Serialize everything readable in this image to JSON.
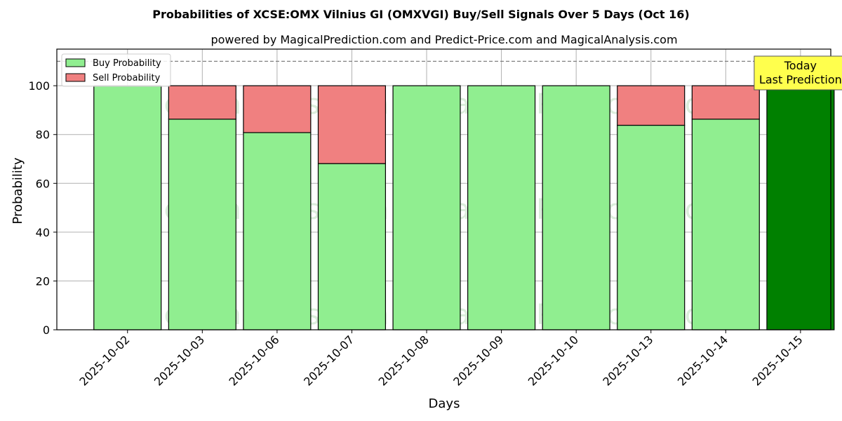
{
  "chart_data": {
    "type": "bar",
    "stacked": true,
    "title": "Probabilities of XCSE:OMX Vilnius GI (OMXVGI) Buy/Sell Signals Over 5 Days (Oct 16)",
    "subtitle": "powered by MagicalPrediction.com and Predict-Price.com and MagicalAnalysis.com",
    "xlabel": "Days",
    "ylabel": "Probability",
    "ylim": [
      0,
      115
    ],
    "yticks": [
      0,
      20,
      40,
      60,
      80,
      100
    ],
    "grid": true,
    "legend_position": "top-left",
    "categories": [
      "2025-10-02",
      "2025-10-03",
      "2025-10-06",
      "2025-10-07",
      "2025-10-08",
      "2025-10-09",
      "2025-10-10",
      "2025-10-13",
      "2025-10-14",
      "2025-10-15"
    ],
    "series": [
      {
        "name": "Buy Probability",
        "color": "#90ee90",
        "values": [
          100,
          86.3,
          80.8,
          68.1,
          100,
          100,
          100,
          83.8,
          86.3,
          100
        ]
      },
      {
        "name": "Sell Probability",
        "color": "#f08080",
        "values": [
          0,
          13.7,
          19.2,
          31.9,
          0,
          0,
          0,
          16.2,
          13.7,
          0
        ]
      }
    ],
    "highlight": {
      "index": 9,
      "color": "#008000"
    },
    "reference_line": {
      "y": 110,
      "style": "dashed",
      "color": "#808080"
    },
    "annotation": {
      "lines": [
        "Today",
        "Last Prediction"
      ],
      "background": "#ffff4d"
    },
    "watermarks": [
      "MagicalAnalysis.com",
      "MagicalPrediction.com"
    ]
  }
}
